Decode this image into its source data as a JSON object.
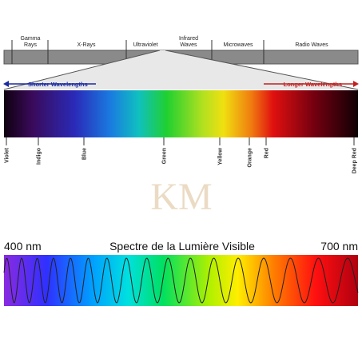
{
  "bands": [
    "Gamma Rays",
    "X-Rays",
    "Ultraviolet",
    "Infrared Waves",
    "Microwaves",
    "Radio Waves"
  ],
  "arrows": {
    "left": "Shorter Wavelengths",
    "right": "Longer Wavelengths"
  },
  "colors": [
    "Violet",
    "Indigo",
    "Blue",
    "Green",
    "Yellow",
    "Orange",
    "Red",
    "Deep Red"
  ],
  "watermark": "KM",
  "visible": {
    "left": "400 nm",
    "title": "Spectre de la Lumière Visible",
    "right": "700 nm"
  }
}
